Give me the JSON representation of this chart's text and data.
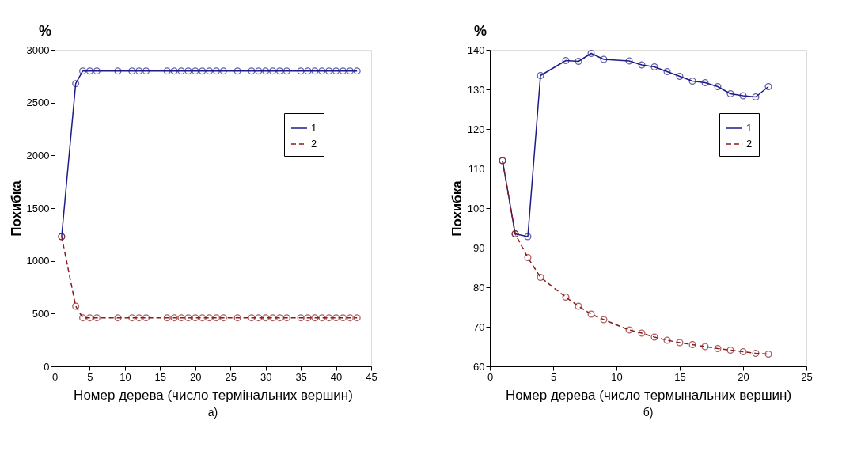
{
  "chart_data": [
    {
      "type": "line",
      "xlabel": "Номер дерева (число термінальних вершин)",
      "ylabel": "Похибка",
      "annotations": [
        "%",
        "а)"
      ],
      "xlim": [
        0,
        45
      ],
      "xticks": [
        0,
        5,
        10,
        15,
        20,
        25,
        30,
        35,
        40,
        45
      ],
      "ylim": [
        0,
        3000
      ],
      "yticks": [
        0,
        500,
        1000,
        1500,
        2000,
        2500,
        3000
      ],
      "grid": false,
      "legend": "top right",
      "marker": "circle",
      "series": [
        {
          "name": "1",
          "color": "#1c1c8a",
          "line_style": "solid",
          "x": [
            1,
            3,
            4,
            5,
            6,
            9,
            11,
            12,
            13,
            16,
            17,
            18,
            19,
            20,
            21,
            22,
            23,
            24,
            26,
            28,
            29,
            30,
            31,
            32,
            33,
            35,
            36,
            37,
            38,
            39,
            40,
            41,
            42,
            43
          ],
          "values": [
            1230,
            2680,
            2800,
            2800,
            2800,
            2800,
            2800,
            2800,
            2800,
            2800,
            2800,
            2800,
            2800,
            2800,
            2800,
            2800,
            2800,
            2800,
            2800,
            2800,
            2800,
            2800,
            2800,
            2800,
            2800,
            2800,
            2800,
            2800,
            2800,
            2800,
            2800,
            2800,
            2800,
            2800
          ]
        },
        {
          "name": "2",
          "color": "#8b1a1a",
          "line_style": "dashed",
          "x": [
            1,
            3,
            4,
            5,
            6,
            9,
            11,
            12,
            13,
            16,
            17,
            18,
            19,
            20,
            21,
            22,
            23,
            24,
            26,
            28,
            29,
            30,
            31,
            32,
            33,
            35,
            36,
            37,
            38,
            39,
            40,
            41,
            42,
            43
          ],
          "values": [
            1230,
            570,
            460,
            460,
            460,
            460,
            460,
            460,
            460,
            460,
            460,
            460,
            460,
            460,
            460,
            460,
            460,
            460,
            460,
            460,
            460,
            460,
            460,
            460,
            460,
            460,
            460,
            460,
            460,
            460,
            460,
            460,
            460,
            460
          ]
        }
      ]
    },
    {
      "type": "line",
      "xlabel": "Номер дерева (число термынальних вершин)",
      "ylabel": "Похибка",
      "annotations": [
        "%",
        "б)"
      ],
      "xlim": [
        0,
        25
      ],
      "xticks": [
        0,
        5,
        10,
        15,
        20,
        25
      ],
      "ylim": [
        60,
        140
      ],
      "yticks": [
        60,
        70,
        80,
        90,
        100,
        110,
        120,
        130,
        140
      ],
      "grid": false,
      "legend": "top right",
      "marker": "circle",
      "series": [
        {
          "name": "1",
          "color": "#1c1c8a",
          "line_style": "solid",
          "x": [
            1,
            2,
            3,
            4,
            6,
            7,
            8,
            9,
            11,
            12,
            13,
            14,
            15,
            16,
            17,
            18,
            19,
            20,
            21,
            22
          ],
          "values": [
            112,
            93.5,
            92.8,
            133.5,
            137.3,
            137.1,
            139.1,
            137.6,
            137.2,
            136.2,
            135.7,
            134.5,
            133.3,
            132.1,
            131.7,
            130.7,
            128.9,
            128.4,
            128.1,
            130.7
          ]
        },
        {
          "name": "2",
          "color": "#8b1a1a",
          "line_style": "dashed",
          "x": [
            1,
            2,
            3,
            4,
            6,
            7,
            8,
            9,
            11,
            12,
            13,
            14,
            15,
            16,
            17,
            18,
            19,
            20,
            21,
            22
          ],
          "values": [
            112,
            93.5,
            87.5,
            82.5,
            77.5,
            75.2,
            73.2,
            71.8,
            69.2,
            68.4,
            67.4,
            66.6,
            66,
            65.5,
            65,
            64.5,
            64.1,
            63.7,
            63.3,
            63.1
          ]
        }
      ]
    }
  ]
}
